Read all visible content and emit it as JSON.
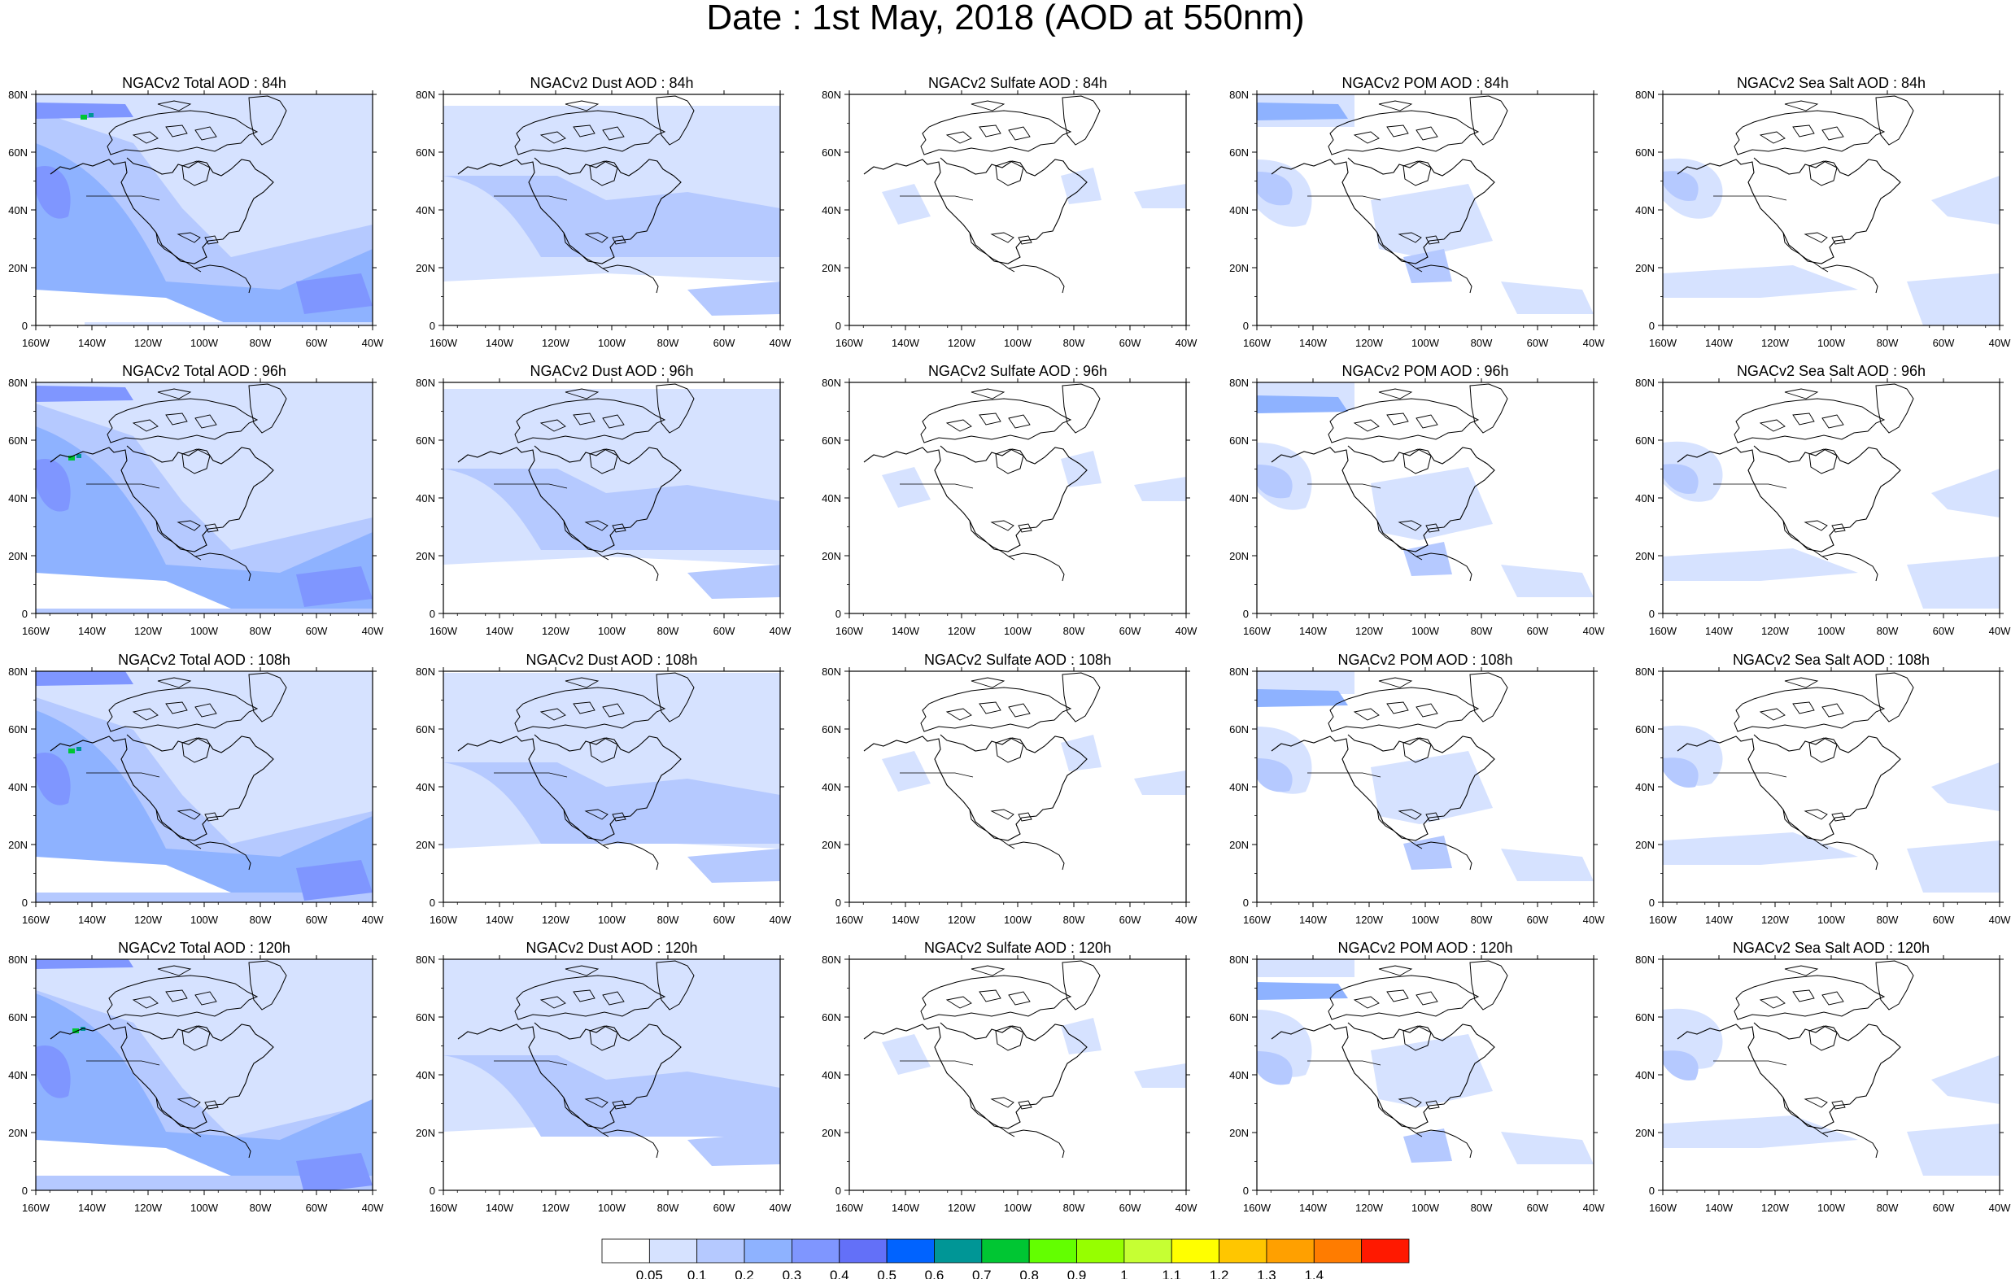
{
  "title": "Date : 1st May, 2018 (AOD at 550nm)",
  "panels": [
    [
      "NGACv2 Total AOD : 84h",
      "NGACv2 Dust AOD : 84h",
      "NGACv2 Sulfate AOD : 84h",
      "NGACv2 POM AOD : 84h",
      "NGACv2 Sea Salt AOD : 84h"
    ],
    [
      "NGACv2 Total AOD : 96h",
      "NGACv2 Dust AOD : 96h",
      "NGACv2 Sulfate AOD : 96h",
      "NGACv2 POM AOD : 96h",
      "NGACv2 Sea Salt AOD : 96h"
    ],
    [
      "NGACv2 Total AOD : 108h",
      "NGACv2 Dust AOD : 108h",
      "NGACv2 Sulfate AOD : 108h",
      "NGACv2 POM AOD : 108h",
      "NGACv2 Sea Salt AOD : 108h"
    ],
    [
      "NGACv2 Total AOD : 120h",
      "NGACv2 Dust AOD : 120h",
      "NGACv2 Sulfate AOD : 120h",
      "NGACv2 POM AOD : 120h",
      "NGACv2 Sea Salt  AOD : 120h"
    ]
  ],
  "map_axes": {
    "lon_ticks": [
      "160W",
      "140W",
      "120W",
      "100W",
      "80W",
      "60W",
      "40W"
    ],
    "lat_ticks": [
      "80N",
      "60N",
      "40N",
      "20N",
      "0"
    ],
    "lon_range": [
      -160,
      -40
    ],
    "lat_range": [
      0,
      80
    ]
  },
  "colorbar": {
    "colors": [
      "#ffffff",
      "#d6e2ff",
      "#b5c9ff",
      "#8eb2ff",
      "#7f96ff",
      "#6370f8",
      "#0063ff",
      "#009696",
      "#00c633",
      "#63ff00",
      "#96ff00",
      "#c6ff33",
      "#ffff00",
      "#ffc600",
      "#ffa000",
      "#ff7c00",
      "#ff1900"
    ],
    "labels": [
      "0.05",
      "0.1",
      "0.2",
      "0.3",
      "0.4",
      "0.5",
      "0.6",
      "0.7",
      "0.8",
      "0.9",
      "1",
      "1.1",
      "1.2",
      "1.3",
      "1.4"
    ]
  }
}
